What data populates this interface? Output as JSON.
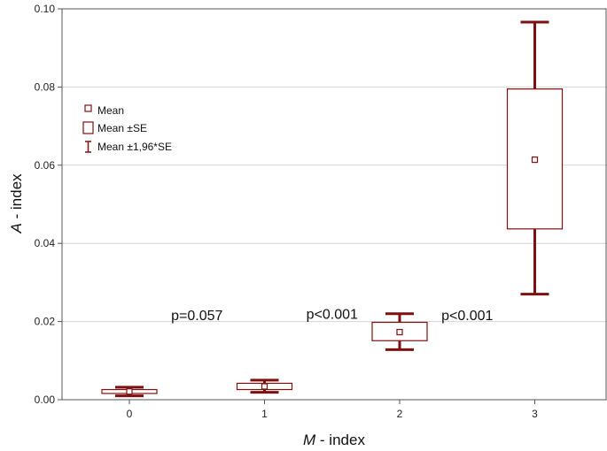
{
  "chart_data": {
    "type": "box",
    "categories": [
      "0",
      "1",
      "2",
      "3"
    ],
    "mean": [
      0.0021,
      0.0034,
      0.0173,
      0.0614
    ],
    "se_low": [
      0.0016,
      0.0026,
      0.0151,
      0.0437
    ],
    "se_high": [
      0.0026,
      0.0042,
      0.0198,
      0.0795
    ],
    "ci_low": [
      0.001,
      0.0019,
      0.0128,
      0.027
    ],
    "ci_high": [
      0.0032,
      0.005,
      0.022,
      0.0966
    ],
    "xlabel_italic": "M",
    "xlabel_rest": " - index",
    "ylabel_italic": "A",
    "ylabel_rest": " - index",
    "ylim": [
      0,
      0.1
    ],
    "yticks": [
      "0.00",
      "0.02",
      "0.04",
      "0.06",
      "0.08",
      "0.10"
    ],
    "ytick_values": [
      0,
      0.02,
      0.04,
      0.06,
      0.08,
      0.1
    ],
    "grid": true,
    "legend": {
      "placement": "top-left",
      "entries": [
        "Mean",
        "Mean ±SE",
        "Mean ±1,96*SE"
      ]
    },
    "annotations": [
      {
        "text": "p=0.057",
        "between": [
          0,
          1
        ],
        "y": 0.0215
      },
      {
        "text": "p<0.001",
        "between": [
          1,
          2
        ],
        "y": 0.0218
      },
      {
        "text": "p<0.001",
        "between": [
          2,
          3
        ],
        "y": 0.0215
      }
    ],
    "colors": {
      "series": "#7f1010",
      "grid": "#d6d6d6",
      "axis": "#555555"
    }
  }
}
